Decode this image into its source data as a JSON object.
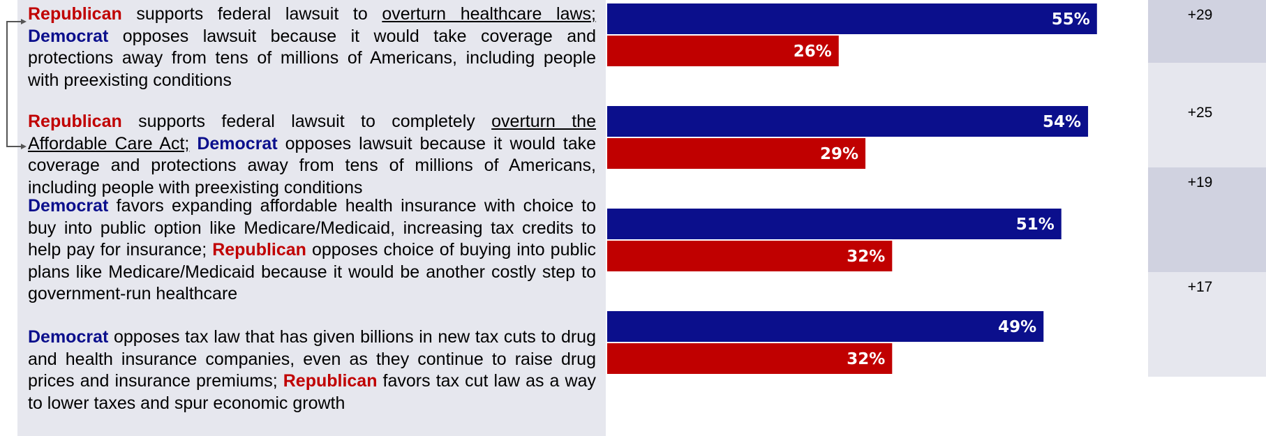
{
  "statements": [
    {
      "runs": [
        {
          "text": "Republican",
          "style": "rep"
        },
        {
          "text": " supports federal lawsuit to ",
          "style": ""
        },
        {
          "text": "overturn healthcare laws;",
          "style": "ul"
        },
        {
          "text": " ",
          "style": ""
        },
        {
          "text": "Democrat",
          "style": "dem"
        },
        {
          "text": " opposes lawsuit because it would take coverage and protections away from tens of millions of Americans, including people with preexisting conditions",
          "style": ""
        }
      ]
    },
    {
      "runs": [
        {
          "text": "Republican",
          "style": "rep"
        },
        {
          "text": " supports federal lawsuit to completely ",
          "style": ""
        },
        {
          "text": "overturn the Affordable Care Act;",
          "style": "ul"
        },
        {
          "text": " ",
          "style": ""
        },
        {
          "text": "Democrat",
          "style": "dem"
        },
        {
          "text": " opposes lawsuit because it would take coverage and protections away from tens of millions of Americans, including people with preexisting conditions",
          "style": ""
        }
      ]
    },
    {
      "runs": [
        {
          "text": "Democrat",
          "style": "dem"
        },
        {
          "text": " favors expanding affordable health insurance with choice to buy into public option like Medicare/Medicaid, increasing tax credits to help pay for insurance; ",
          "style": ""
        },
        {
          "text": "Republican",
          "style": "rep"
        },
        {
          "text": " opposes choice of buying into public plans like Medicare/Medicaid because it would be another costly step to government-run healthcare",
          "style": ""
        }
      ]
    },
    {
      "runs": [
        {
          "text": "Democrat",
          "style": "dem"
        },
        {
          "text": " opposes tax law that has given billions in new tax cuts to drug and health insurance companies, even as they continue to raise drug prices and insurance premiums; ",
          "style": ""
        },
        {
          "text": "Republican",
          "style": "rep"
        },
        {
          "text": " favors tax cut law as a way to lower taxes and spur economic growth",
          "style": ""
        }
      ]
    }
  ],
  "chart_data": {
    "type": "bar",
    "orientation": "horizontal",
    "categories": [
      "1",
      "2",
      "3",
      "4"
    ],
    "series": [
      {
        "color": "#0b0f8c",
        "values": [
          55,
          54,
          51,
          49
        ],
        "labels": [
          "55%",
          "54%",
          "51%",
          "49%"
        ]
      },
      {
        "color": "#c00000",
        "values": [
          26,
          29,
          32,
          32
        ],
        "labels": [
          "26%",
          "29%",
          "32%",
          "32%"
        ]
      }
    ],
    "xlim": [
      0,
      70
    ],
    "differences": [
      "+29",
      "+25",
      "+19",
      "+17"
    ],
    "grid": false,
    "legend": "none"
  }
}
